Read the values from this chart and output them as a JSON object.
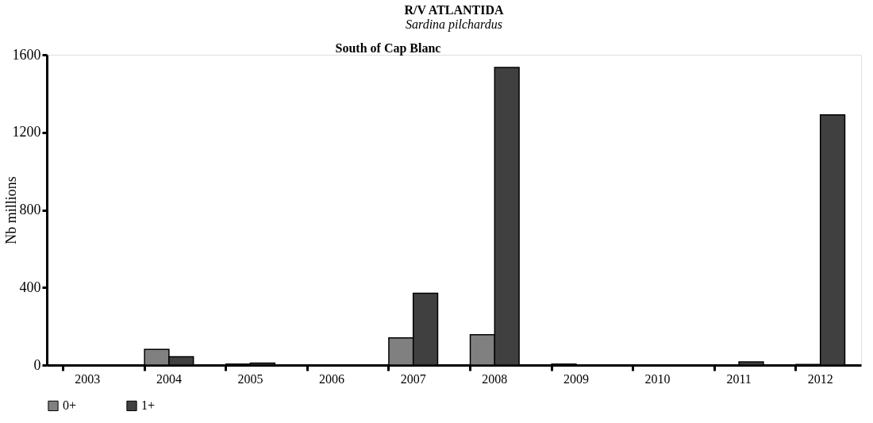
{
  "chart_data": {
    "type": "bar",
    "title": "R/V ATLANTIDA",
    "subtitle": "Sardina pilchardus",
    "annotations": [
      "South of Cap Blanc"
    ],
    "ylabel": "Nb millions",
    "categories": [
      "2003",
      "2004",
      "2005",
      "2006",
      "2007",
      "2008",
      "2009",
      "2010",
      "2011",
      "2012"
    ],
    "series": [
      {
        "name": "0+",
        "color": "#808080",
        "values": [
          0,
          81,
          5,
          0,
          140,
          157,
          5,
          0,
          0,
          3
        ]
      },
      {
        "name": "1+",
        "color": "#404040",
        "values": [
          0,
          43,
          10,
          0,
          370,
          1535,
          0,
          0,
          16,
          1290
        ]
      }
    ],
    "ylim": [
      0,
      1600
    ],
    "yticks": [
      0,
      400,
      800,
      1200,
      1600
    ],
    "grid": false,
    "legend": "bottom"
  }
}
